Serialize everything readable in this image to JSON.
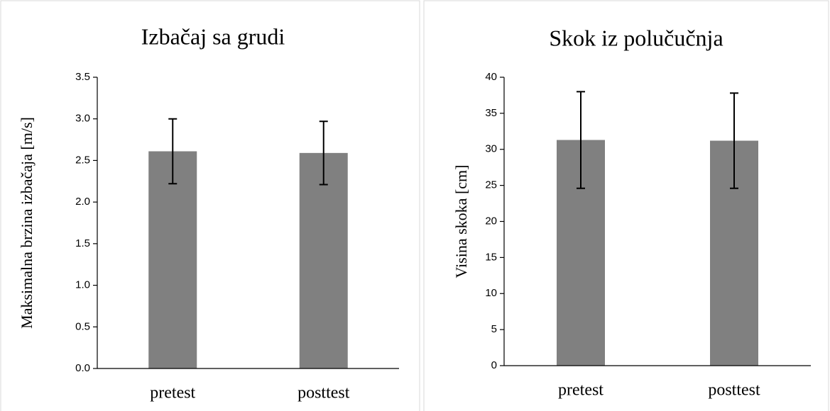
{
  "chart_data": [
    {
      "type": "bar",
      "title": "Izbačaj sa grudi",
      "ylabel": "Maksimalna brzina izbačaja [m/s]",
      "categories": [
        "pretest",
        "posttest"
      ],
      "values": [
        2.61,
        2.59
      ],
      "errors": [
        0.39,
        0.38
      ],
      "color": "#808080",
      "ylim": [
        0,
        3.5
      ],
      "yticks": [
        {
          "value": 0,
          "label": "0.0"
        },
        0.5,
        {
          "value": 1,
          "label": "1.0"
        },
        1.5,
        {
          "value": 2,
          "label": "2.0"
        },
        2.5,
        {
          "value": 3,
          "label": "3.0"
        },
        3.5
      ],
      "grid": false
    },
    {
      "type": "bar",
      "title": "Skok iz polučučnja",
      "ylabel": "Visina skoka [cm]",
      "categories": [
        "pretest",
        "posttest"
      ],
      "values": [
        31.3,
        31.2
      ],
      "errors": [
        6.7,
        6.6
      ],
      "color": "#808080",
      "ylim": [
        0,
        40
      ],
      "yticks": [
        0,
        5,
        10,
        15,
        20,
        25,
        30,
        35,
        40
      ],
      "grid": false
    }
  ]
}
